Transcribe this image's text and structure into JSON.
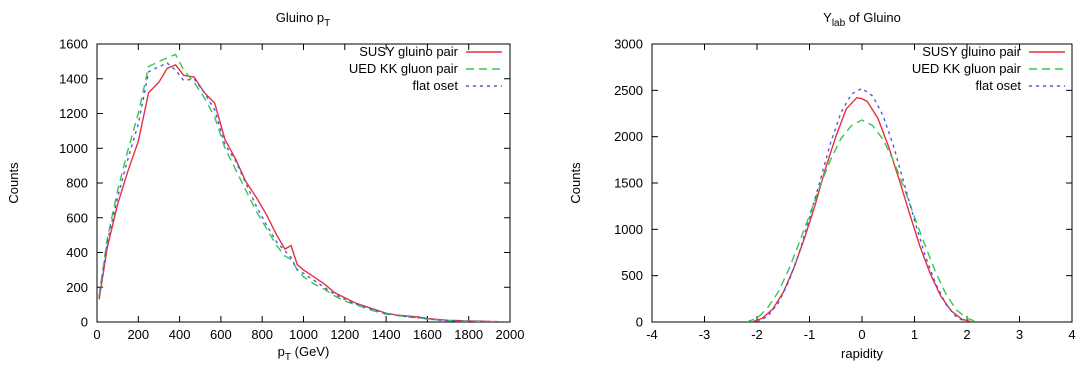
{
  "chart_data": [
    {
      "type": "line",
      "title": "Gluino p",
      "title_sub": "T",
      "xlabel": "p",
      "xlabel_sub": "T",
      "xlabel_suffix": " (GeV)",
      "ylabel": "Counts",
      "xlim": [
        0,
        2000
      ],
      "ylim": [
        0,
        1600
      ],
      "xticks": [
        "0",
        "200",
        "400",
        "600",
        "800",
        "1000",
        "1200",
        "1400",
        "1600",
        "1800",
        "2000"
      ],
      "yticks": [
        "0",
        "200",
        "400",
        "600",
        "800",
        "1000",
        "1200",
        "1400",
        "1600"
      ],
      "grid": false,
      "legend_position": "top-right",
      "series": [
        {
          "name": "SUSY gluino pair",
          "color": "#e8303a",
          "dash": "solid",
          "x": [
            10,
            50,
            100,
            150,
            200,
            250,
            300,
            340,
            380,
            420,
            470,
            520,
            570,
            620,
            670,
            720,
            770,
            820,
            870,
            910,
            940,
            970,
            1000,
            1050,
            1100,
            1150,
            1200,
            1250,
            1300,
            1350,
            1400,
            1450,
            1500,
            1550,
            1600,
            1650,
            1700,
            1750,
            1800,
            1850,
            1900,
            1950
          ],
          "y": [
            130,
            430,
            680,
            870,
            1040,
            1320,
            1380,
            1460,
            1480,
            1420,
            1410,
            1320,
            1260,
            1050,
            940,
            810,
            720,
            620,
            500,
            420,
            440,
            330,
            300,
            260,
            220,
            170,
            140,
            110,
            90,
            70,
            50,
            40,
            35,
            30,
            20,
            15,
            10,
            8,
            5,
            5,
            3,
            2
          ]
        },
        {
          "name": "UED KK gluon pair",
          "color": "#36c84a",
          "dash": "8,5",
          "x": [
            10,
            50,
            100,
            150,
            200,
            250,
            300,
            340,
            380,
            420,
            470,
            520,
            570,
            620,
            670,
            720,
            770,
            820,
            870,
            910,
            940,
            970,
            1000,
            1050,
            1100,
            1150,
            1200,
            1250,
            1300,
            1350,
            1400,
            1450,
            1500,
            1550,
            1600,
            1650,
            1700,
            1750,
            1800,
            1850,
            1900,
            1950
          ],
          "y": [
            150,
            480,
            760,
            990,
            1200,
            1470,
            1500,
            1520,
            1540,
            1450,
            1380,
            1290,
            1180,
            1000,
            880,
            760,
            640,
            540,
            440,
            380,
            360,
            300,
            260,
            220,
            190,
            150,
            120,
            100,
            80,
            60,
            45,
            38,
            30,
            25,
            18,
            12,
            8,
            6,
            4,
            3,
            2,
            1
          ]
        },
        {
          "name": "flat oset",
          "color": "#4a5ce0",
          "dash": "3,4",
          "x": [
            10,
            50,
            100,
            150,
            200,
            250,
            300,
            340,
            380,
            420,
            470,
            520,
            570,
            620,
            670,
            720,
            770,
            820,
            870,
            910,
            940,
            970,
            1000,
            1050,
            1100,
            1150,
            1200,
            1250,
            1300,
            1350,
            1400,
            1450,
            1500,
            1550,
            1600,
            1650,
            1700,
            1750,
            1800,
            1850,
            1900,
            1950
          ],
          "y": [
            140,
            460,
            720,
            940,
            1140,
            1440,
            1470,
            1490,
            1450,
            1390,
            1400,
            1320,
            1220,
            1020,
            930,
            800,
            670,
            560,
            460,
            410,
            370,
            300,
            280,
            240,
            200,
            160,
            130,
            105,
            85,
            65,
            50,
            40,
            30,
            25,
            18,
            12,
            8,
            6,
            4,
            3,
            2,
            1
          ]
        }
      ]
    },
    {
      "type": "line",
      "title": "Y",
      "title_sub": "lab",
      "title_suffix": " of Gluino",
      "xlabel": "rapidity",
      "ylabel": "Counts",
      "xlim": [
        -4,
        4
      ],
      "ylim": [
        0,
        3000
      ],
      "xticks": [
        "-4",
        "-3",
        "-2",
        "-1",
        "0",
        "1",
        "2",
        "3",
        "4"
      ],
      "yticks": [
        "0",
        "500",
        "1000",
        "1500",
        "2000",
        "2500",
        "3000"
      ],
      "grid": false,
      "legend_position": "top-right",
      "series": [
        {
          "name": "SUSY gluino pair",
          "color": "#e8303a",
          "dash": "solid",
          "x": [
            -2.1,
            -1.9,
            -1.7,
            -1.5,
            -1.3,
            -1.1,
            -0.9,
            -0.7,
            -0.5,
            -0.3,
            -0.1,
            0,
            0.1,
            0.3,
            0.5,
            0.7,
            0.9,
            1.1,
            1.3,
            1.5,
            1.7,
            1.9,
            2.1
          ],
          "y": [
            0,
            40,
            140,
            320,
            580,
            900,
            1250,
            1650,
            2000,
            2300,
            2420,
            2410,
            2380,
            2200,
            1900,
            1550,
            1180,
            820,
            520,
            280,
            120,
            30,
            0
          ]
        },
        {
          "name": "UED KK gluon pair",
          "color": "#36c84a",
          "dash": "8,5",
          "x": [
            -2.2,
            -2.0,
            -1.8,
            -1.6,
            -1.4,
            -1.2,
            -1.0,
            -0.8,
            -0.6,
            -0.4,
            -0.2,
            0,
            0.2,
            0.4,
            0.6,
            0.8,
            1.0,
            1.2,
            1.4,
            1.6,
            1.8,
            2.0,
            2.2
          ],
          "y": [
            0,
            40,
            150,
            320,
            560,
            850,
            1150,
            1470,
            1750,
            1980,
            2120,
            2180,
            2120,
            1970,
            1740,
            1450,
            1130,
            830,
            540,
            300,
            130,
            40,
            0
          ]
        },
        {
          "name": "flat oset",
          "color": "#4a5ce0",
          "dash": "3,4",
          "x": [
            -2.0,
            -1.8,
            -1.6,
            -1.4,
            -1.2,
            -1.0,
            -0.8,
            -0.6,
            -0.4,
            -0.2,
            0,
            0.2,
            0.4,
            0.6,
            0.8,
            1.0,
            1.2,
            1.4,
            1.6,
            1.8,
            2.0
          ],
          "y": [
            0,
            60,
            200,
            430,
            740,
            1120,
            1520,
            1930,
            2260,
            2460,
            2520,
            2440,
            2230,
            1900,
            1500,
            1100,
            720,
            420,
            190,
            50,
            0
          ]
        }
      ]
    }
  ]
}
